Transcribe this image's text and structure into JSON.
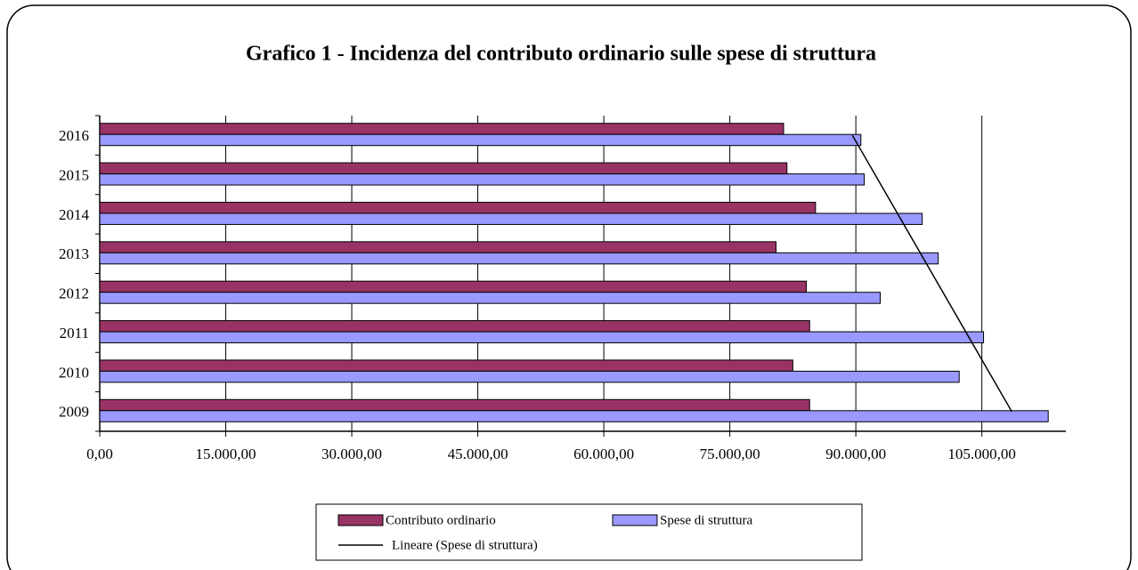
{
  "chart_data": {
    "type": "hbar",
    "title": "Grafico 1 - Incidenza del contributo ordinario sulle spese di struttura",
    "categories": [
      "2009",
      "2010",
      "2011",
      "2012",
      "2013",
      "2014",
      "2015",
      "2016"
    ],
    "series": [
      {
        "name": "Contributo ordinario",
        "color": "#993366",
        "values": [
          84500,
          82500,
          84500,
          84100,
          80500,
          85200,
          81800,
          81400
        ]
      },
      {
        "name": "Spese di struttura",
        "color": "#9999ff",
        "values": [
          112900,
          102300,
          105200,
          92900,
          99800,
          97900,
          91000,
          90600
        ]
      }
    ],
    "trendline": {
      "name": "Lineare (Spese di struttura)",
      "color": "#000000"
    },
    "xlim": [
      0,
      115000
    ],
    "xticks": [
      {
        "value": 0,
        "label": "0,00"
      },
      {
        "value": 15000,
        "label": "15.000,00"
      },
      {
        "value": 30000,
        "label": "30.000,00"
      },
      {
        "value": 45000,
        "label": "45.000,00"
      },
      {
        "value": 60000,
        "label": "60.000,00"
      },
      {
        "value": 75000,
        "label": "75.000,00"
      },
      {
        "value": 90000,
        "label": "90.000,00"
      },
      {
        "value": 105000,
        "label": "105.000,00"
      }
    ],
    "grid": true,
    "legend": "bottom"
  }
}
